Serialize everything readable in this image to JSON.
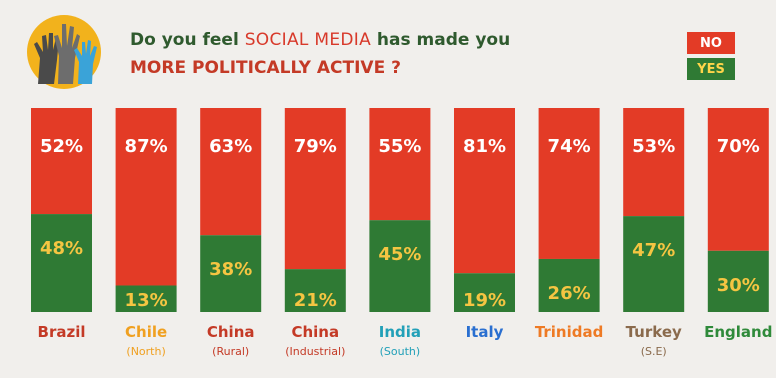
{
  "header": {
    "question_part1": "Do you feel ",
    "question_highlight": "SOCIAL MEDIA",
    "question_part2": " has made you",
    "question_line2": "MORE POLITICALLY ACTIVE ?"
  },
  "legend": {
    "no_label": "NO",
    "yes_label": "YES"
  },
  "colors": {
    "no": "#e33b26",
    "yes": "#2f7a34",
    "no_value_text": "#ffffff",
    "yes_value_text": "#f5c542"
  },
  "chart_data": {
    "type": "bar",
    "stacked": true,
    "categories": [
      "Brazil",
      "Chile",
      "China",
      "China",
      "India",
      "Italy",
      "Trinidad",
      "Turkey",
      "England"
    ],
    "subcategories": [
      "",
      "(North)",
      "(Rural)",
      "(Industrial)",
      "(South)",
      "",
      "",
      "(S.E)",
      ""
    ],
    "category_colors": [
      "#c43a26",
      "#f0a020",
      "#c43a26",
      "#c43a26",
      "#22a0b8",
      "#2a6fd0",
      "#ee7a24",
      "#8a6a4c",
      "#2f8a3a"
    ],
    "series": [
      {
        "name": "NO",
        "values": [
          52,
          87,
          63,
          79,
          55,
          81,
          74,
          53,
          70
        ]
      },
      {
        "name": "YES",
        "values": [
          48,
          13,
          38,
          21,
          45,
          19,
          26,
          47,
          30
        ]
      }
    ],
    "value_labels": {
      "NO": [
        "52%",
        "87%",
        "63%",
        "79%",
        "55%",
        "81%",
        "74%",
        "53%",
        "70%"
      ],
      "YES": [
        "48%",
        "13%",
        "38%",
        "21%",
        "45%",
        "19%",
        "26%",
        "47%",
        "30%"
      ]
    },
    "ylim": [
      0,
      100
    ]
  }
}
